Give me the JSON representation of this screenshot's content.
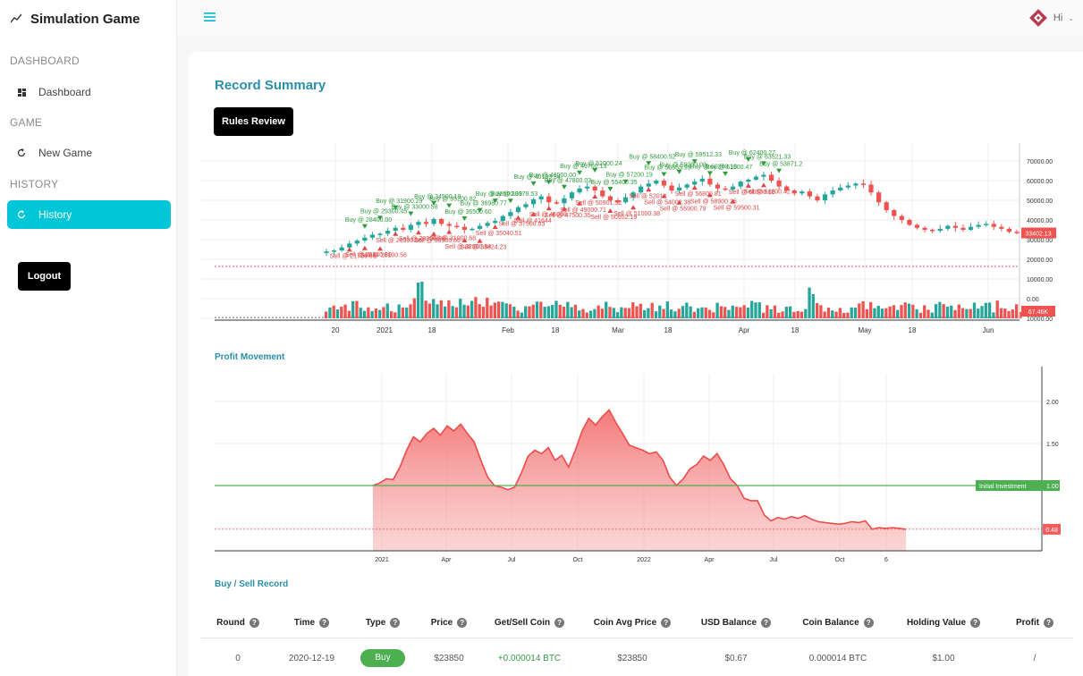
{
  "app": {
    "title": "Simulation Game",
    "user_label": "Hi"
  },
  "sidebar": {
    "sections": [
      {
        "label": "DASHBOARD",
        "items": [
          {
            "label": "Dashboard",
            "icon": "dashboard-icon"
          }
        ]
      },
      {
        "label": "GAME",
        "items": [
          {
            "label": "New Game",
            "icon": "refresh-icon"
          }
        ]
      },
      {
        "label": "HISTORY",
        "items": [
          {
            "label": "History",
            "icon": "history-icon",
            "active": true
          }
        ]
      }
    ],
    "logout_label": "Logout"
  },
  "page": {
    "title": "Record Summary",
    "rules_button": "Rules Review",
    "profit_title": "Profit Movement",
    "record_title": "Buy / Sell Record"
  },
  "colors": {
    "accent": "#00c6d7",
    "title": "#2a8fa8",
    "up": "#26a69a",
    "down": "#ef5350",
    "buy": "#4caf50"
  },
  "chart_data": [
    {
      "type": "candlestick",
      "price_axis_ticks": [
        "70000.00",
        "60000.00",
        "50000.00",
        "40000.00",
        "30000.00",
        "20000.00",
        "10000.00",
        "0.00",
        "10000.00"
      ],
      "x_ticks": [
        "20",
        "2021",
        "18",
        "Feb",
        "18",
        "Mar",
        "18",
        "Apr",
        "18",
        "May",
        "18",
        "Jun"
      ],
      "close": [
        24000,
        24500,
        26000,
        28000,
        29500,
        31000,
        32500,
        33000,
        34500,
        36000,
        35000,
        37500,
        39000,
        38000,
        40500,
        38000,
        37000,
        36500,
        35000,
        35500,
        37000,
        38500,
        39500,
        42000,
        44000,
        46500,
        48000,
        50500,
        52000,
        49000,
        48500,
        51000,
        54000,
        56000,
        57000,
        55000,
        52000,
        50000,
        49000,
        51500,
        54000,
        57000,
        58500,
        60000,
        57500,
        55000,
        56500,
        58000,
        59500,
        61000,
        58000,
        56000,
        55500,
        57000,
        59500,
        60500,
        62000,
        63000,
        60000,
        57000,
        55000,
        53500,
        54500,
        52000,
        50000,
        53000,
        55000,
        56500,
        57500,
        58500,
        58000,
        54000,
        49000,
        45000,
        42000,
        40000,
        37500,
        36000,
        35000,
        34500,
        35500,
        37000,
        36000,
        35000,
        36500,
        37500,
        38000,
        36500,
        35500,
        34000,
        33402
      ],
      "current_price_label": "33402.13",
      "reference_line_label": "17000.00",
      "volume_label": "67.46K",
      "buy_marker_labels": [
        "Buy @ 28400.00",
        "Buy @ 29300.45",
        "Buy @ 31900.29",
        "Buy @ 33000.58",
        "Buy @ 34500.19",
        "Buy @ 35200.82",
        "Buy @ 36500.60",
        "Buy @ 36980.77",
        "Buy @ 38500.09",
        "Buy @ 39178.53",
        "Buy @ 40199.34",
        "Buy @ 46000.00",
        "Buy @ 47800.03",
        "Buy @ 49700.13",
        "Buy @ 52000.24",
        "Buy @ 55400.35",
        "Buy @ 57200.19",
        "Buy @ 58400.52",
        "Buy @ 58855.99",
        "Buy @ 59000.00",
        "Buy @ 59512.33",
        "Buy @ 60200.18",
        "Buy @ 61500.47",
        "Buy @ 62400.27",
        "Buy @ 63521.33",
        "Buy @ 53871.2"
      ],
      "sell_marker_labels": [
        "Sell @ 21700.66",
        "Sell @ 23840.80",
        "Sell @ 25100.56",
        "Sell @ 26900.35",
        "Sell @ 28900.99",
        "Sell @ 30500.66",
        "Sell @ 31000.68",
        "Sell @ 32800.64",
        "Sell @ 33824.23",
        "Sell @ 35040.51",
        "Sell @ 37500.03",
        "Sell @ 41644",
        "Sell @ 46008",
        "Sell @ 47500.35",
        "Sell @ 49000.71",
        "Sell @ 50901.52",
        "Sell @ 50952.19",
        "Sell @ 51000.38",
        "Sell @ 52014",
        "Sell @ 54002.38",
        "Sell @ 55900.79",
        "Sell @ 56800.81",
        "Sell @ 58900.26",
        "Sell @ 59500.31",
        "Sell @ 60500.86",
        "Sell @ 61200.42"
      ]
    },
    {
      "type": "area",
      "title": "Profit Movement",
      "x_ticks": [
        "2021",
        "Apr",
        "Jul",
        "Oct",
        "2022",
        "Apr",
        "Jul",
        "Oct",
        "6"
      ],
      "y_ticks": [
        "2.00",
        "1.50",
        "1.00"
      ],
      "reference_line": {
        "label": "Initial Investment",
        "value": 1.0
      },
      "current_value_label": "0.48",
      "values": [
        1.0,
        1.03,
        1.08,
        1.07,
        1.22,
        1.42,
        1.58,
        1.52,
        1.62,
        1.68,
        1.6,
        1.71,
        1.65,
        1.73,
        1.62,
        1.52,
        1.3,
        1.1,
        1.0,
        0.98,
        0.95,
        0.98,
        1.15,
        1.35,
        1.42,
        1.38,
        1.45,
        1.3,
        1.36,
        1.22,
        1.42,
        1.65,
        1.8,
        1.72,
        1.82,
        1.9,
        1.75,
        1.62,
        1.48,
        1.45,
        1.42,
        1.38,
        1.4,
        1.3,
        1.1,
        1.0,
        1.08,
        1.2,
        1.25,
        1.35,
        1.3,
        1.38,
        1.25,
        1.08,
        1.0,
        0.85,
        0.82,
        0.82,
        0.65,
        0.58,
        0.62,
        0.6,
        0.63,
        0.61,
        0.64,
        0.6,
        0.57,
        0.56,
        0.55,
        0.54,
        0.55,
        0.57,
        0.56,
        0.58,
        0.48,
        0.5,
        0.49,
        0.5,
        0.49,
        0.48
      ]
    }
  ],
  "table": {
    "columns": [
      "Round",
      "Time",
      "Type",
      "Price",
      "Get/Sell Coin",
      "Coin Avg Price",
      "USD Balance",
      "Coin Balance",
      "Holding Value",
      "Profit"
    ],
    "help_icon": "question-icon",
    "rows": [
      {
        "round": "0",
        "time": "2020-12-19",
        "type": "Buy",
        "price": "$23850",
        "coin": "+0.000014 BTC",
        "avg": "$23850",
        "usd": "$0.67",
        "coin_balance": "0.000014 BTC",
        "holding": "$1.00",
        "profit": "/"
      }
    ]
  }
}
